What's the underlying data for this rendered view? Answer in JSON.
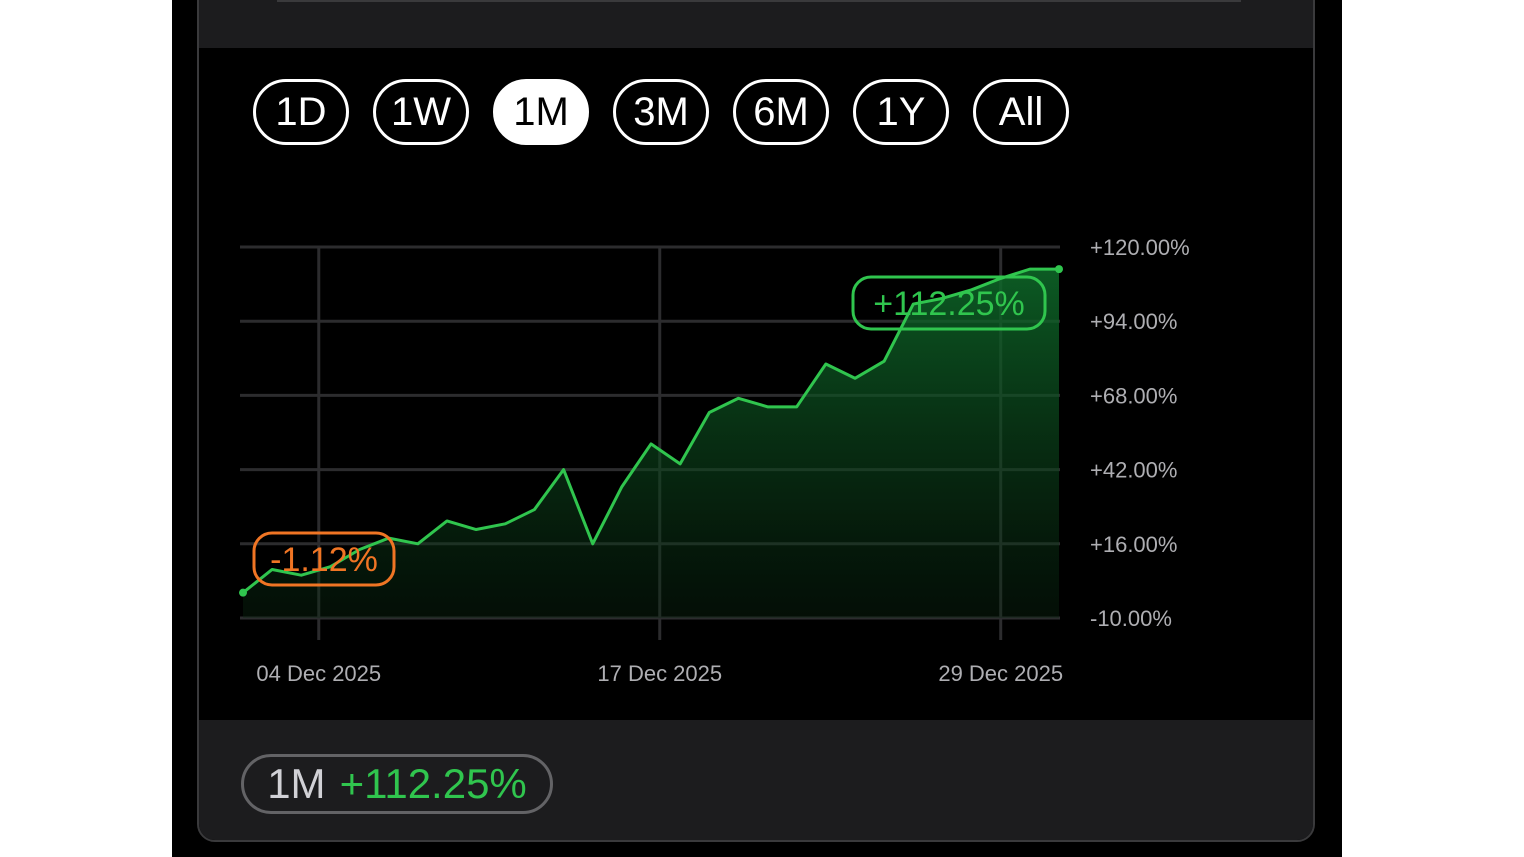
{
  "range_buttons": [
    {
      "label": "1D",
      "active": false
    },
    {
      "label": "1W",
      "active": false
    },
    {
      "label": "1M",
      "active": true
    },
    {
      "label": "3M",
      "active": false
    },
    {
      "label": "6M",
      "active": false
    },
    {
      "label": "1Y",
      "active": false
    },
    {
      "label": "All",
      "active": false
    }
  ],
  "summary": {
    "range": "1M",
    "change": "+112.25%"
  },
  "colors": {
    "positive": "#30c54e",
    "negative": "#f07524",
    "grid": "#2c2c2e",
    "axis_text": "#aeaeb2"
  },
  "chart_data": {
    "type": "area",
    "x_ticks": [
      "04 Dec 2025",
      "17 Dec 2025",
      "29 Dec 2025"
    ],
    "y_ticks": [
      "+120.00%",
      "+94.00%",
      "+68.00%",
      "+42.00%",
      "+16.00%",
      "-10.00%"
    ],
    "ylim": [
      -10,
      120
    ],
    "grid": true,
    "series": [
      {
        "values": [
          -1.12,
          7,
          5,
          8,
          14,
          18,
          16,
          24,
          21,
          23,
          28,
          42,
          16,
          36,
          51,
          44,
          62,
          67,
          64,
          64,
          79,
          74,
          80,
          100,
          102,
          105,
          109,
          112.25,
          112.25
        ],
        "color": "#30c54e"
      }
    ],
    "annotations": [
      {
        "text": "-1.12%",
        "kind": "low"
      },
      {
        "text": "+112.25%",
        "kind": "high"
      }
    ]
  }
}
